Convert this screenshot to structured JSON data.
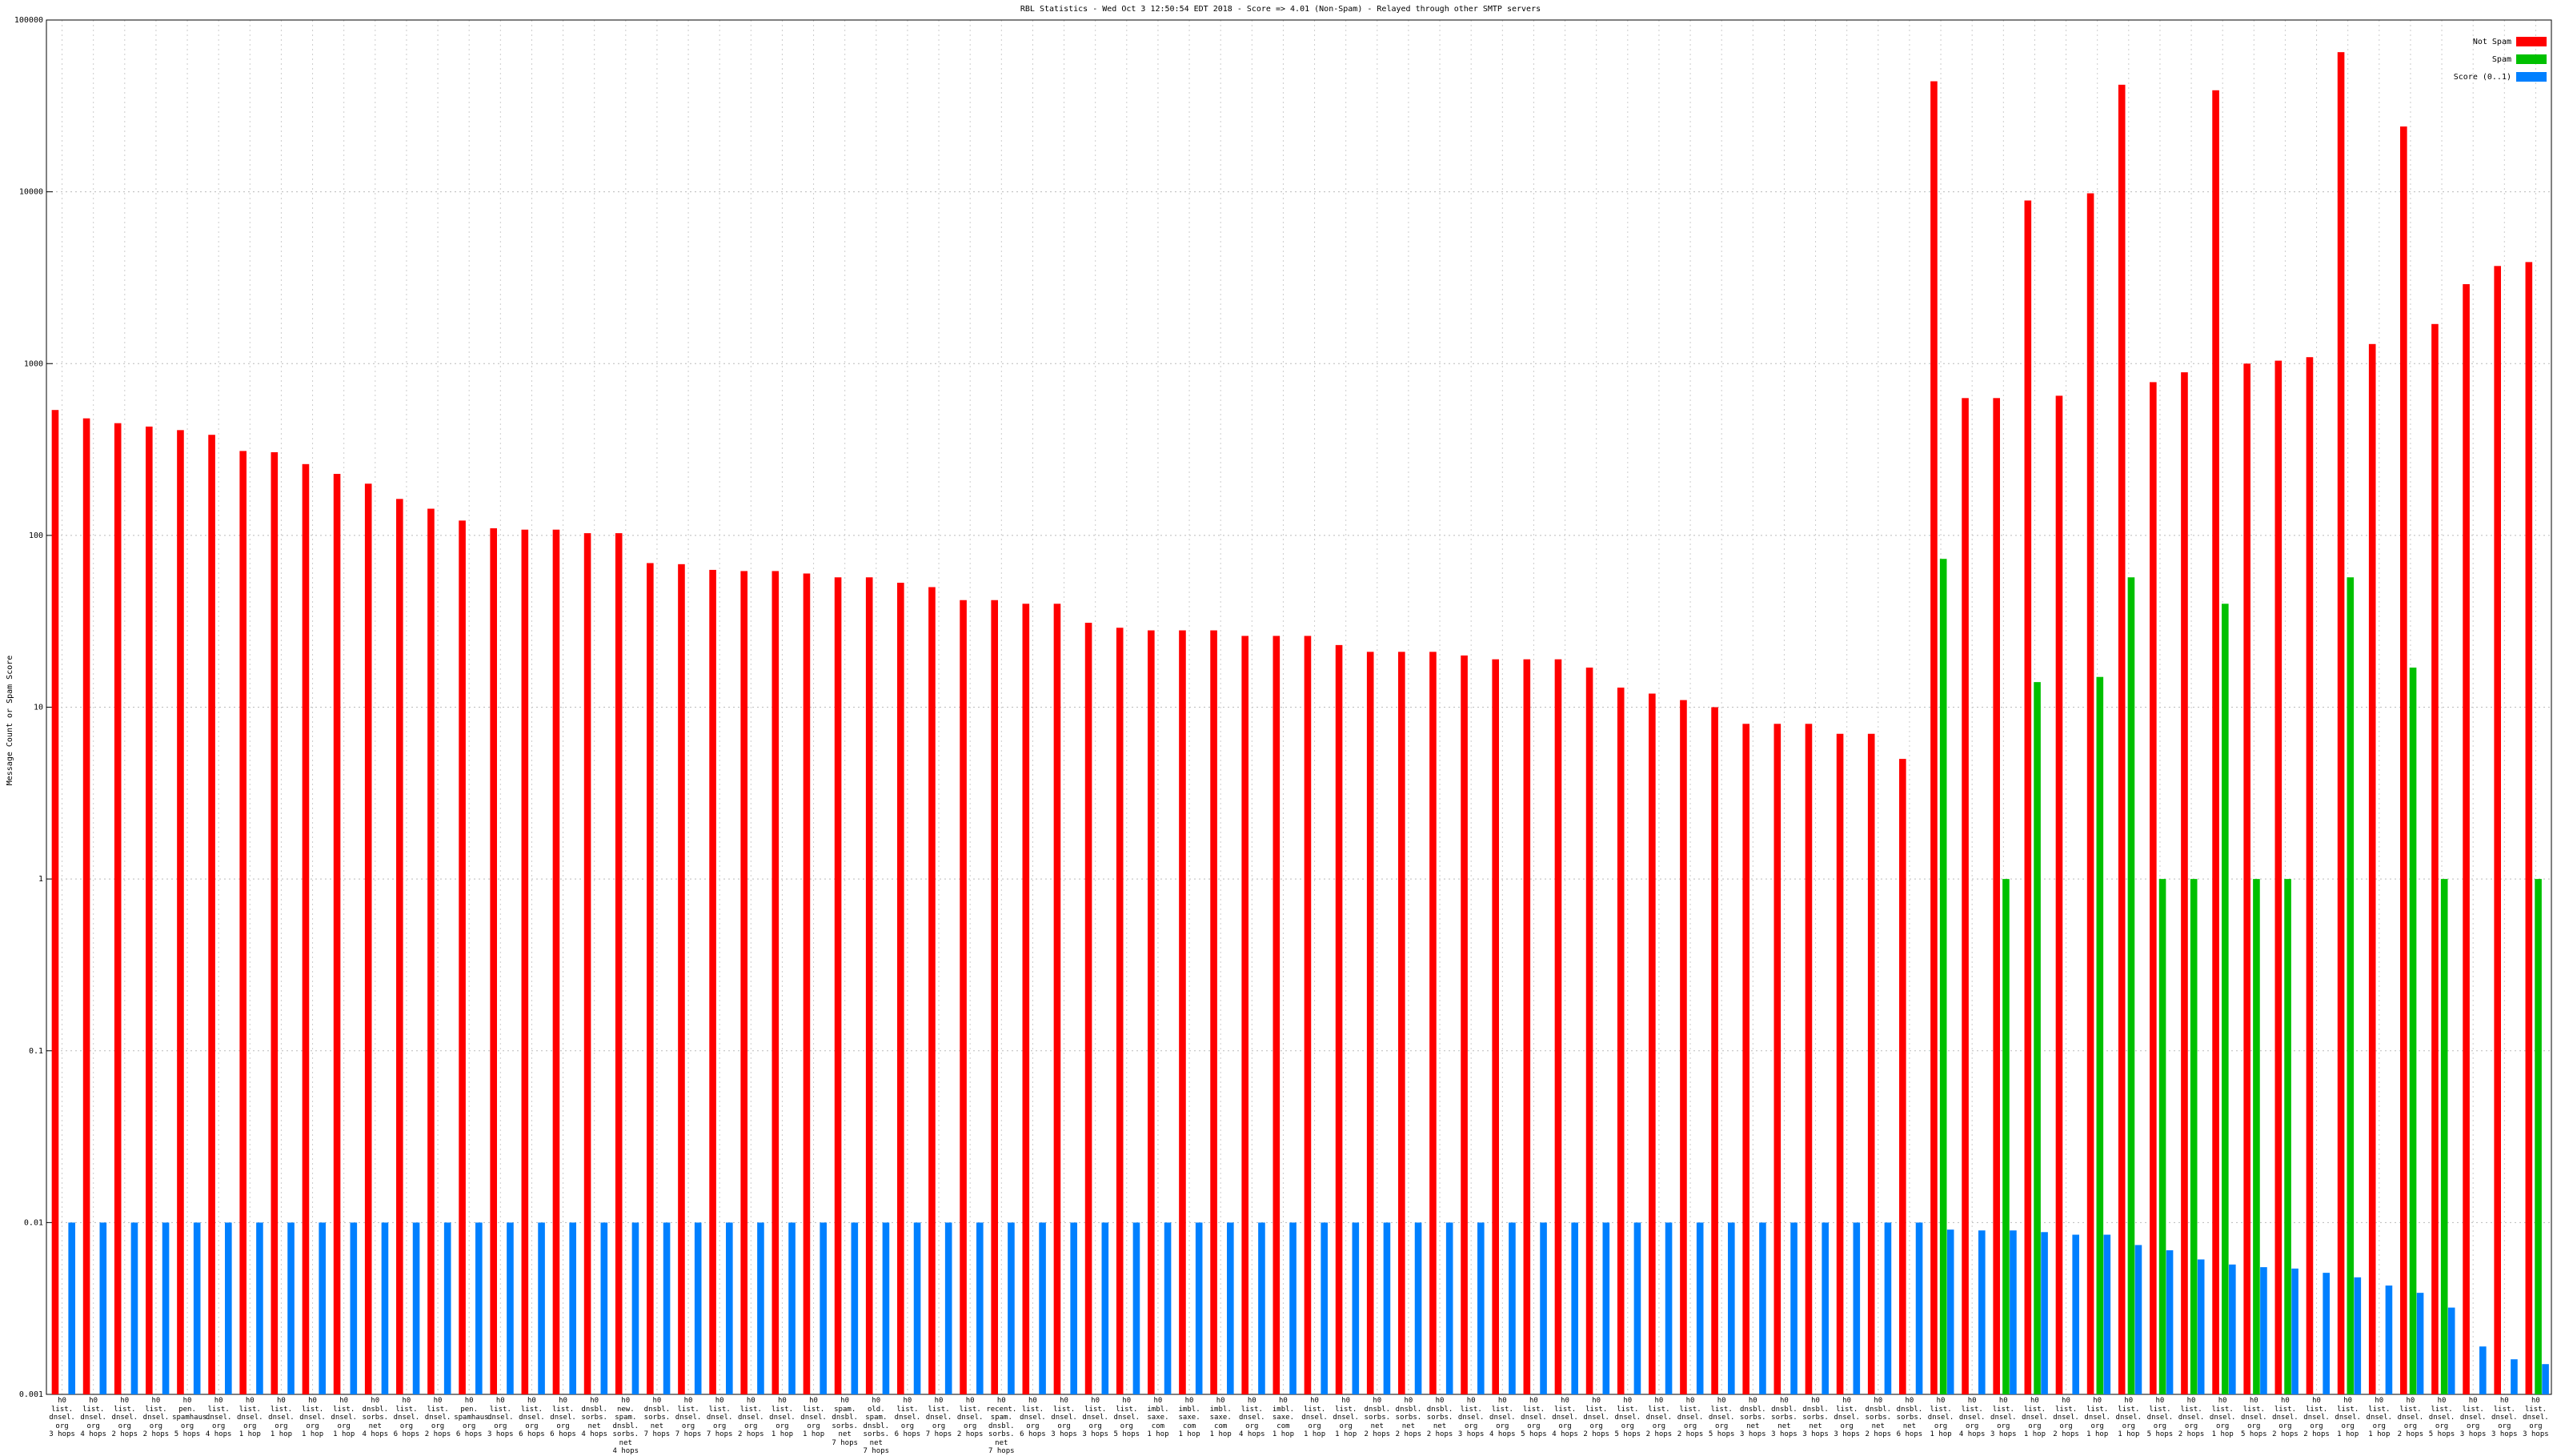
{
  "chart_data": {
    "type": "bar",
    "title": "RBL Statistics - Wed Oct  3 12:50:54 EDT 2018 - Score => 4.01 (Non-Spam) - Relayed through other SMTP servers",
    "y_label": "Message Count or Spam Score",
    "log_scale": true,
    "grid": true,
    "legend_position": "top-right",
    "ylim": [
      0.001,
      100000
    ],
    "yticks": [
      0.001,
      0.01,
      0.1,
      1,
      10,
      100,
      1000,
      10000,
      100000
    ],
    "categories": [
      "h0\nlist.\ndnsel.\norg\n3 hops",
      "h0\nlist.\ndnsel.\norg\n4 hops",
      "h0\nlist.\ndnsel.\norg\n2 hops",
      "h0\nlist.\ndnsel.\norg\n2 hops",
      "h0\npen.\nspamhaus.\norg\n5 hops",
      "h0\nlist.\ndnsel.\norg\n4 hops",
      "h0\nlist.\ndnsel.\norg\n1 hop",
      "h0\nlist.\ndnsel.\norg\n1 hop",
      "h0\nlist.\ndnsel.\norg\n1 hop",
      "h0\nlist.\ndnsel.\norg\n1 hop",
      "h0\ndnsbl.\nsorbs.\nnet\n4 hops",
      "h0\nlist.\ndnsel.\norg\n6 hops",
      "h0\nlist.\ndnsel.\norg\n2 hops",
      "h0\npen.\nspamhaus.\norg\n6 hops",
      "h0\nlist.\ndnsel.\norg\n3 hops",
      "h0\nlist.\ndnsel.\norg\n6 hops",
      "h0\nlist.\ndnsel.\norg\n6 hops",
      "h0\ndnsbl.\nsorbs.\nnet\n4 hops",
      "h0\nnew.\nspam.\ndnsbl.\nsorbs.\nnet\n4 hops",
      "h0\ndnsbl.\nsorbs.\nnet\n7 hops",
      "h0\nlist.\ndnsel.\norg\n7 hops",
      "h0\nlist.\ndnsel.\norg\n7 hops",
      "h0\nlist.\ndnsel.\norg\n2 hops",
      "h0\nlist.\ndnsel.\norg\n1 hop",
      "h0\nlist.\ndnsel.\norg\n1 hop",
      "h0\nspam.\ndnsbl.\nsorbs.\nnet\n7 hops",
      "h0\nold.\nspam.\ndnsbl.\nsorbs.\nnet\n7 hops",
      "h0\nlist.\ndnsel.\norg\n6 hops",
      "h0\nlist.\ndnsel.\norg\n7 hops",
      "h0\nlist.\ndnsel.\norg\n2 hops",
      "h0\nrecent.\nspam.\ndnsbl.\nsorbs.\nnet\n7 hops",
      "h0\nlist.\ndnsel.\norg\n6 hops",
      "h0\nlist.\ndnsel.\norg\n3 hops",
      "h0\nlist.\ndnsel.\norg\n3 hops",
      "h0\nlist.\ndnsel.\norg\n5 hops",
      "h0\nimbl.\nsaxe.\ncom\n1 hop",
      "h0\nimbl.\nsaxe.\ncom\n1 hop",
      "h0\nimbl.\nsaxe.\ncom\n1 hop",
      "h0\nlist.\ndnsel.\norg\n4 hops",
      "h0\nimbl.\nsaxe.\ncom\n1 hop",
      "h0\nlist.\ndnsel.\norg\n1 hop",
      "h0\nlist.\ndnsel.\norg\n1 hop",
      "h0\ndnsbl.\nsorbs.\nnet\n2 hops",
      "h0\ndnsbl.\nsorbs.\nnet\n2 hops",
      "h0\ndnsbl.\nsorbs.\nnet\n2 hops",
      "h0\nlist.\ndnsel.\norg\n3 hops",
      "h0\nlist.\ndnsel.\norg\n4 hops",
      "h0\nlist.\ndnsel.\norg\n5 hops",
      "h0\nlist.\ndnsel.\norg\n4 hops",
      "h0\nlist.\ndnsel.\norg\n2 hops",
      "h0\nlist.\ndnsel.\norg\n5 hops",
      "h0\nlist.\ndnsel.\norg\n2 hops",
      "h0\nlist.\ndnsel.\norg\n2 hops",
      "h0\nlist.\ndnsel.\norg\n5 hops",
      "h0\ndnsbl.\nsorbs.\nnet\n3 hops",
      "h0\ndnsbl.\nsorbs.\nnet\n3 hops",
      "h0\ndnsbl.\nsorbs.\nnet\n3 hops",
      "h0\nlist.\ndnsel.\norg\n3 hops",
      "h0\ndnsbl.\nsorbs.\nnet\n2 hops",
      "h0\ndnsbl.\nsorbs.\nnet\n6 hops",
      "h0\nlist.\ndnsel.\norg\n1 hop",
      "h0\nlist.\ndnsel.\norg\n4 hops",
      "h0\nlist.\ndnsel.\norg\n3 hops",
      "h0\nlist.\ndnsel.\norg\n1 hop",
      "h0\nlist.\ndnsel.\norg\n2 hops",
      "h0\nlist.\ndnsel.\norg\n1 hop",
      "h0\nlist.\ndnsel.\norg\n1 hop",
      "h0\nlist.\ndnsel.\norg\n5 hops",
      "h0\nlist.\ndnsel.\norg\n2 hops",
      "h0\nlist.\ndnsel.\norg\n1 hop",
      "h0\nlist.\ndnsel.\norg\n5 hops",
      "h0\nlist.\ndnsel.\norg\n2 hops",
      "h0\nlist.\ndnsel.\norg\n2 hops",
      "h0\nlist.\ndnsel.\norg\n1 hop",
      "h0\nlist.\ndnsel.\norg\n1 hop",
      "h0\nlist.\ndnsel.\norg\n2 hops",
      "h0\nlist.\ndnsel.\norg\n5 hops",
      "h0\nlist.\ndnsel.\norg\n3 hops",
      "h0\nlist.\ndnsel.\norg\n3 hops",
      "h0\nlist.\ndnsel.\norg\n3 hops"
    ],
    "series": [
      {
        "name": "Not Spam",
        "color": "#ff0000",
        "values": [
          537,
          480,
          450,
          430,
          410,
          385,
          310,
          305,
          260,
          228,
          200,
          163,
          143,
          122,
          110,
          108,
          108,
          103,
          103,
          69,
          68,
          63,
          62,
          62,
          60,
          57,
          57,
          53,
          50,
          42,
          42,
          40,
          40,
          31,
          29,
          28,
          28,
          28,
          26,
          26,
          26,
          23,
          21,
          21,
          21,
          20,
          19,
          19,
          19,
          17,
          13,
          12,
          11,
          10,
          8,
          8,
          8,
          7,
          7,
          5,
          44000,
          630,
          630,
          8900,
          650,
          9800,
          42000,
          780,
          890,
          39000,
          1000,
          1040,
          1090,
          65000,
          1300,
          24000,
          1700,
          2900,
          3700,
          3900
        ]
      },
      {
        "name": "Spam",
        "color": "#00c000",
        "values": [
          null,
          null,
          null,
          null,
          null,
          null,
          null,
          null,
          null,
          null,
          null,
          null,
          null,
          null,
          null,
          null,
          null,
          null,
          null,
          null,
          null,
          null,
          null,
          null,
          null,
          null,
          null,
          null,
          null,
          null,
          null,
          null,
          null,
          null,
          null,
          null,
          null,
          null,
          null,
          null,
          null,
          null,
          null,
          null,
          null,
          null,
          null,
          null,
          null,
          null,
          null,
          null,
          null,
          null,
          null,
          null,
          null,
          null,
          null,
          null,
          73,
          null,
          1,
          14,
          null,
          15,
          57,
          1,
          1,
          40,
          1,
          1,
          null,
          57,
          null,
          17,
          1,
          null,
          null,
          1
        ]
      },
      {
        "name": "Score (0..1)",
        "color": "#0080ff",
        "values": [
          0.01,
          0.01,
          0.01,
          0.01,
          0.01,
          0.01,
          0.01,
          0.01,
          0.01,
          0.01,
          0.01,
          0.01,
          0.01,
          0.01,
          0.01,
          0.01,
          0.01,
          0.01,
          0.01,
          0.01,
          0.01,
          0.01,
          0.01,
          0.01,
          0.01,
          0.01,
          0.01,
          0.01,
          0.01,
          0.01,
          0.01,
          0.01,
          0.01,
          0.01,
          0.01,
          0.01,
          0.01,
          0.01,
          0.01,
          0.01,
          0.01,
          0.01,
          0.01,
          0.01,
          0.01,
          0.01,
          0.01,
          0.01,
          0.01,
          0.01,
          0.01,
          0.01,
          0.01,
          0.01,
          0.01,
          0.01,
          0.01,
          0.01,
          0.01,
          0.01,
          0.0091,
          0.009,
          0.009,
          0.0088,
          0.0085,
          0.0085,
          0.0074,
          0.0069,
          0.0061,
          0.0057,
          0.0055,
          0.0054,
          0.0051,
          0.0048,
          0.0043,
          0.0039,
          0.0032,
          0.0019,
          0.0016,
          0.0015
        ]
      }
    ]
  }
}
